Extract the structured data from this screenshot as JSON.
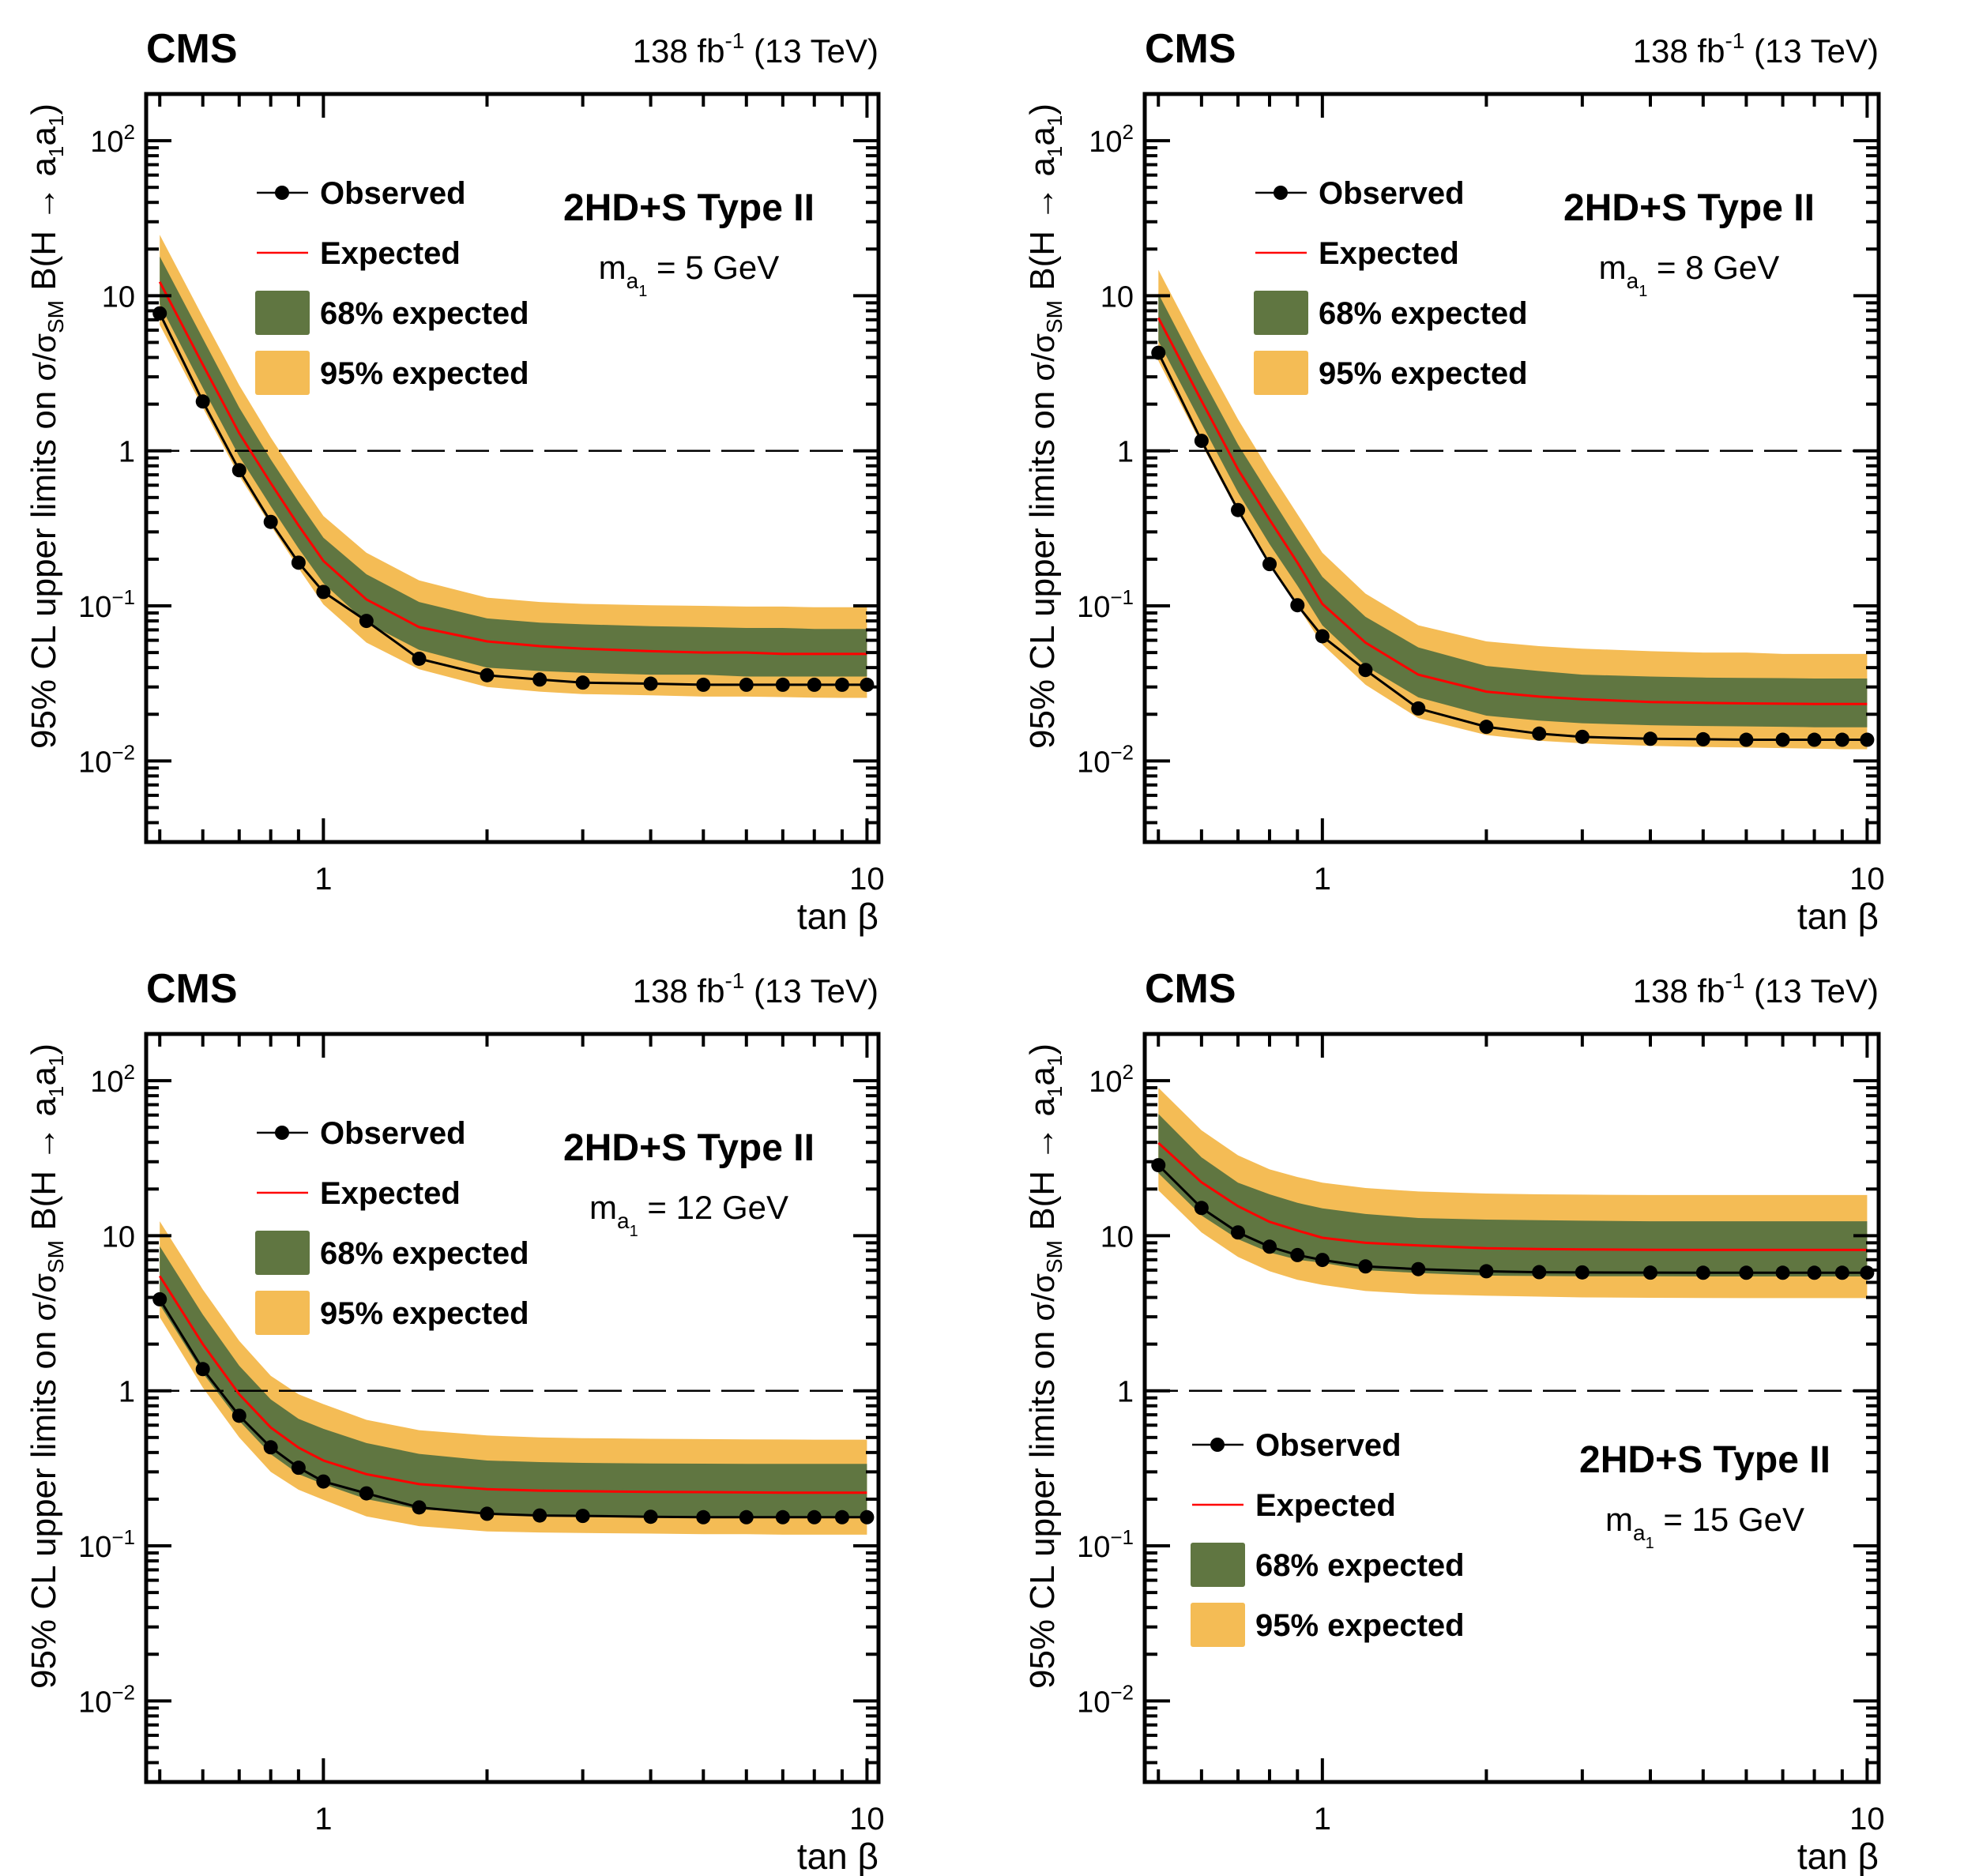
{
  "figure": {
    "experiment_label": "CMS",
    "lumi_label": "138 fb",
    "lumi_exponent": "-1",
    "energy_label": "(13 TeV)",
    "colors": {
      "band95": "#f4bc55",
      "band68": "#607641",
      "expected": "#ff0000",
      "observed": "#000000",
      "reference_line": "#000000"
    }
  },
  "chart_data": [
    {
      "type": "line",
      "title": "2HD+S Type II",
      "subtitle_prefix": "m",
      "subtitle_sub": "a",
      "subtitle_subsub": "1",
      "subtitle_value": "= 5 GeV",
      "xlabel": "tan β",
      "ylabel": "95% CL upper limits on σ/σSM B(H → a1a1)",
      "xscale": "log",
      "yscale": "log",
      "xlim": [
        0.472,
        10.5
      ],
      "ylim": [
        0.003,
        200
      ],
      "xticks": [
        {
          "v": 1,
          "label": "1"
        },
        {
          "v": 10,
          "label": "10"
        }
      ],
      "yticks": [
        {
          "v": 0.01,
          "base": "10",
          "exp": "−2"
        },
        {
          "v": 0.1,
          "base": "10",
          "exp": "−1"
        },
        {
          "v": 1,
          "base": "1",
          "exp": ""
        },
        {
          "v": 10,
          "base": "10",
          "exp": ""
        },
        {
          "v": 100,
          "base": "10",
          "exp": "2"
        }
      ],
      "reference_line": 1,
      "legend": {
        "position": "top-left",
        "entries": [
          "Observed",
          "Expected",
          "68% expected",
          "95% expected"
        ]
      },
      "x": [
        0.5,
        0.6,
        0.7,
        0.8,
        0.9,
        1.0,
        1.2,
        1.5,
        2,
        2.5,
        3,
        4,
        5,
        6,
        7,
        8,
        9,
        10
      ],
      "series": [
        {
          "name": "Observed",
          "values": [
            7.7,
            2.08,
            0.75,
            0.348,
            0.19,
            0.123,
            0.08,
            0.0456,
            0.0357,
            0.0335,
            0.032,
            0.0315,
            0.031,
            0.031,
            0.031,
            0.031,
            0.031,
            0.031
          ]
        },
        {
          "name": "Expected",
          "values": [
            12.3,
            3.6,
            1.3,
            0.62,
            0.33,
            0.195,
            0.11,
            0.073,
            0.059,
            0.055,
            0.053,
            0.051,
            0.05,
            0.05,
            0.049,
            0.049,
            0.049,
            0.049
          ]
        },
        {
          "name": "68% expected",
          "upper": [
            17.9,
            5.3,
            1.9,
            0.88,
            0.47,
            0.275,
            0.16,
            0.106,
            0.083,
            0.078,
            0.076,
            0.074,
            0.073,
            0.072,
            0.072,
            0.071,
            0.071,
            0.071
          ],
          "lower": [
            8.8,
            2.55,
            0.92,
            0.44,
            0.235,
            0.14,
            0.078,
            0.052,
            0.04,
            0.038,
            0.037,
            0.036,
            0.036,
            0.035,
            0.035,
            0.035,
            0.035,
            0.035
          ]
        },
        {
          "name": "95% expected",
          "upper": [
            24.7,
            7.3,
            2.65,
            1.22,
            0.65,
            0.38,
            0.22,
            0.146,
            0.113,
            0.106,
            0.103,
            0.101,
            0.1,
            0.099,
            0.099,
            0.098,
            0.098,
            0.098
          ],
          "lower": [
            6.5,
            1.9,
            0.69,
            0.33,
            0.175,
            0.102,
            0.058,
            0.039,
            0.03,
            0.028,
            0.027,
            0.0265,
            0.026,
            0.026,
            0.0258,
            0.0256,
            0.0255,
            0.0255
          ]
        }
      ]
    },
    {
      "type": "line",
      "title": "2HD+S Type II",
      "subtitle_prefix": "m",
      "subtitle_sub": "a",
      "subtitle_subsub": "1",
      "subtitle_value": "= 8 GeV",
      "xlabel": "tan β",
      "ylabel": "95% CL upper limits on σ/σSM B(H → a1a1)",
      "xscale": "log",
      "yscale": "log",
      "xlim": [
        0.472,
        10.5
      ],
      "ylim": [
        0.003,
        200
      ],
      "xticks": [
        {
          "v": 1,
          "label": "1"
        },
        {
          "v": 10,
          "label": "10"
        }
      ],
      "yticks": [
        {
          "v": 0.01,
          "base": "10",
          "exp": "−2"
        },
        {
          "v": 0.1,
          "base": "10",
          "exp": "−1"
        },
        {
          "v": 1,
          "base": "1",
          "exp": ""
        },
        {
          "v": 10,
          "base": "10",
          "exp": ""
        },
        {
          "v": 100,
          "base": "10",
          "exp": "2"
        }
      ],
      "reference_line": 1,
      "legend": {
        "position": "top-left",
        "entries": [
          "Observed",
          "Expected",
          "68% expected",
          "95% expected"
        ]
      },
      "x": [
        0.5,
        0.6,
        0.7,
        0.8,
        0.9,
        1.0,
        1.2,
        1.5,
        2,
        2.5,
        3,
        4,
        5,
        6,
        7,
        8,
        9,
        10
      ],
      "series": [
        {
          "name": "Observed",
          "values": [
            4.29,
            1.16,
            0.415,
            0.186,
            0.101,
            0.0637,
            0.0386,
            0.0218,
            0.0166,
            0.015,
            0.0143,
            0.0139,
            0.0138,
            0.0137,
            0.0137,
            0.0137,
            0.0137,
            0.0137
          ]
        },
        {
          "name": "Expected",
          "values": [
            7.2,
            2.1,
            0.76,
            0.36,
            0.19,
            0.103,
            0.058,
            0.036,
            0.028,
            0.026,
            0.025,
            0.024,
            0.0237,
            0.0235,
            0.0234,
            0.0233,
            0.0233,
            0.0233
          ]
        },
        {
          "name": "68% expected",
          "upper": [
            10.3,
            3.0,
            1.1,
            0.52,
            0.27,
            0.154,
            0.085,
            0.054,
            0.041,
            0.038,
            0.036,
            0.035,
            0.0345,
            0.0343,
            0.0342,
            0.034,
            0.034,
            0.034
          ],
          "lower": [
            5.1,
            1.5,
            0.54,
            0.25,
            0.135,
            0.075,
            0.041,
            0.0257,
            0.0196,
            0.0182,
            0.0175,
            0.017,
            0.0168,
            0.0167,
            0.0166,
            0.0165,
            0.0165,
            0.0165
          ]
        },
        {
          "name": "95% expected",
          "upper": [
            14.7,
            4.3,
            1.6,
            0.74,
            0.39,
            0.22,
            0.12,
            0.075,
            0.059,
            0.055,
            0.053,
            0.051,
            0.05,
            0.05,
            0.049,
            0.049,
            0.049,
            0.049
          ],
          "lower": [
            3.8,
            1.1,
            0.4,
            0.185,
            0.1,
            0.0565,
            0.031,
            0.0189,
            0.0147,
            0.0135,
            0.013,
            0.0125,
            0.0123,
            0.0122,
            0.0121,
            0.012,
            0.0119,
            0.0119
          ]
        }
      ]
    },
    {
      "type": "line",
      "title": "2HD+S Type II",
      "subtitle_prefix": "m",
      "subtitle_sub": "a",
      "subtitle_subsub": "1",
      "subtitle_value": "= 12 GeV",
      "xlabel": "tan β",
      "ylabel": "95% CL upper limits on σ/σSM B(H → a1a1)",
      "xscale": "log",
      "yscale": "log",
      "xlim": [
        0.472,
        10.5
      ],
      "ylim": [
        0.003,
        200
      ],
      "xticks": [
        {
          "v": 1,
          "label": "1"
        },
        {
          "v": 10,
          "label": "10"
        }
      ],
      "yticks": [
        {
          "v": 0.01,
          "base": "10",
          "exp": "−2"
        },
        {
          "v": 0.1,
          "base": "10",
          "exp": "−1"
        },
        {
          "v": 1,
          "base": "1",
          "exp": ""
        },
        {
          "v": 10,
          "base": "10",
          "exp": ""
        },
        {
          "v": 100,
          "base": "10",
          "exp": "2"
        }
      ],
      "reference_line": 1,
      "legend": {
        "position": "top-left",
        "entries": [
          "Observed",
          "Expected",
          "68% expected",
          "95% expected"
        ]
      },
      "x": [
        0.5,
        0.6,
        0.7,
        0.8,
        0.9,
        1.0,
        1.2,
        1.5,
        2,
        2.5,
        3,
        4,
        5,
        6,
        7,
        8,
        9,
        10
      ],
      "series": [
        {
          "name": "Observed",
          "values": [
            3.89,
            1.38,
            0.69,
            0.432,
            0.319,
            0.26,
            0.218,
            0.177,
            0.161,
            0.157,
            0.156,
            0.154,
            0.153,
            0.153,
            0.153,
            0.153,
            0.153,
            0.153
          ]
        },
        {
          "name": "Expected",
          "values": [
            5.5,
            2.0,
            0.95,
            0.58,
            0.43,
            0.355,
            0.29,
            0.25,
            0.232,
            0.227,
            0.225,
            0.223,
            0.222,
            0.221,
            0.22,
            0.22,
            0.22,
            0.22
          ]
        },
        {
          "name": "68% expected",
          "upper": [
            8.55,
            3.1,
            1.45,
            0.88,
            0.66,
            0.568,
            0.46,
            0.392,
            0.355,
            0.347,
            0.343,
            0.34,
            0.339,
            0.338,
            0.338,
            0.338,
            0.338,
            0.338
          ],
          "lower": [
            3.6,
            1.3,
            0.64,
            0.39,
            0.29,
            0.25,
            0.2,
            0.172,
            0.162,
            0.158,
            0.156,
            0.154,
            0.153,
            0.153,
            0.152,
            0.152,
            0.152,
            0.152
          ]
        },
        {
          "name": "95% expected",
          "upper": [
            12.4,
            4.5,
            2.1,
            1.25,
            0.95,
            0.82,
            0.65,
            0.557,
            0.515,
            0.5,
            0.495,
            0.49,
            0.488,
            0.486,
            0.485,
            0.484,
            0.484,
            0.484
          ],
          "lower": [
            2.98,
            1.05,
            0.5,
            0.3,
            0.23,
            0.198,
            0.155,
            0.134,
            0.124,
            0.122,
            0.121,
            0.12,
            0.119,
            0.119,
            0.118,
            0.118,
            0.118,
            0.118
          ]
        }
      ]
    },
    {
      "type": "line",
      "title": "2HD+S Type II",
      "subtitle_prefix": "m",
      "subtitle_sub": "a",
      "subtitle_subsub": "1",
      "subtitle_value": "= 15 GeV",
      "xlabel": "tan β",
      "ylabel": "95% CL upper limits on σ/σSM B(H → a1a1)",
      "xscale": "log",
      "yscale": "log",
      "xlim": [
        0.472,
        10.5
      ],
      "ylim": [
        0.003,
        200
      ],
      "xticks": [
        {
          "v": 1,
          "label": "1"
        },
        {
          "v": 10,
          "label": "10"
        }
      ],
      "yticks": [
        {
          "v": 0.01,
          "base": "10",
          "exp": "−2"
        },
        {
          "v": 0.1,
          "base": "10",
          "exp": "−1"
        },
        {
          "v": 1,
          "base": "1",
          "exp": ""
        },
        {
          "v": 10,
          "base": "10",
          "exp": ""
        },
        {
          "v": 100,
          "base": "10",
          "exp": "2"
        }
      ],
      "reference_line": 1,
      "legend": {
        "position": "bottom-left",
        "entries": [
          "Observed",
          "Expected",
          "68% expected",
          "95% expected"
        ]
      },
      "x": [
        0.5,
        0.6,
        0.7,
        0.8,
        0.9,
        1.0,
        1.2,
        1.5,
        2,
        2.5,
        3,
        4,
        5,
        6,
        7,
        8,
        9,
        10
      ],
      "series": [
        {
          "name": "Observed",
          "values": [
            28.5,
            15.1,
            10.5,
            8.5,
            7.5,
            6.98,
            6.34,
            6.09,
            5.9,
            5.82,
            5.8,
            5.78,
            5.77,
            5.77,
            5.77,
            5.77,
            5.77,
            5.77
          ]
        },
        {
          "name": "Expected",
          "values": [
            39.7,
            22.1,
            15.5,
            12.3,
            10.8,
            9.7,
            9.0,
            8.65,
            8.3,
            8.2,
            8.16,
            8.12,
            8.1,
            8.1,
            8.1,
            8.1,
            8.1,
            8.1
          ]
        },
        {
          "name": "68% expected",
          "upper": [
            61,
            32,
            22,
            18.5,
            16.3,
            15,
            13.8,
            13,
            12.7,
            12.6,
            12.5,
            12.4,
            12.4,
            12.4,
            12.4,
            12.4,
            12.4,
            12.4
          ],
          "lower": [
            25.3,
            13.5,
            9.5,
            7.8,
            7.0,
            6.7,
            6.0,
            5.75,
            5.53,
            5.5,
            5.48,
            5.47,
            5.46,
            5.46,
            5.46,
            5.46,
            5.46,
            5.46
          ]
        },
        {
          "name": "95% expected",
          "upper": [
            90,
            47.8,
            33,
            26.8,
            23.9,
            22,
            20.3,
            19.3,
            18.7,
            18.5,
            18.4,
            18.3,
            18.3,
            18.3,
            18.3,
            18.3,
            18.3,
            18.3
          ],
          "lower": [
            19.6,
            10.5,
            7.3,
            5.9,
            5.2,
            4.82,
            4.4,
            4.2,
            4.1,
            4.05,
            4.0,
            3.98,
            3.97,
            3.96,
            3.96,
            3.96,
            3.96,
            3.96
          ]
        }
      ]
    }
  ]
}
